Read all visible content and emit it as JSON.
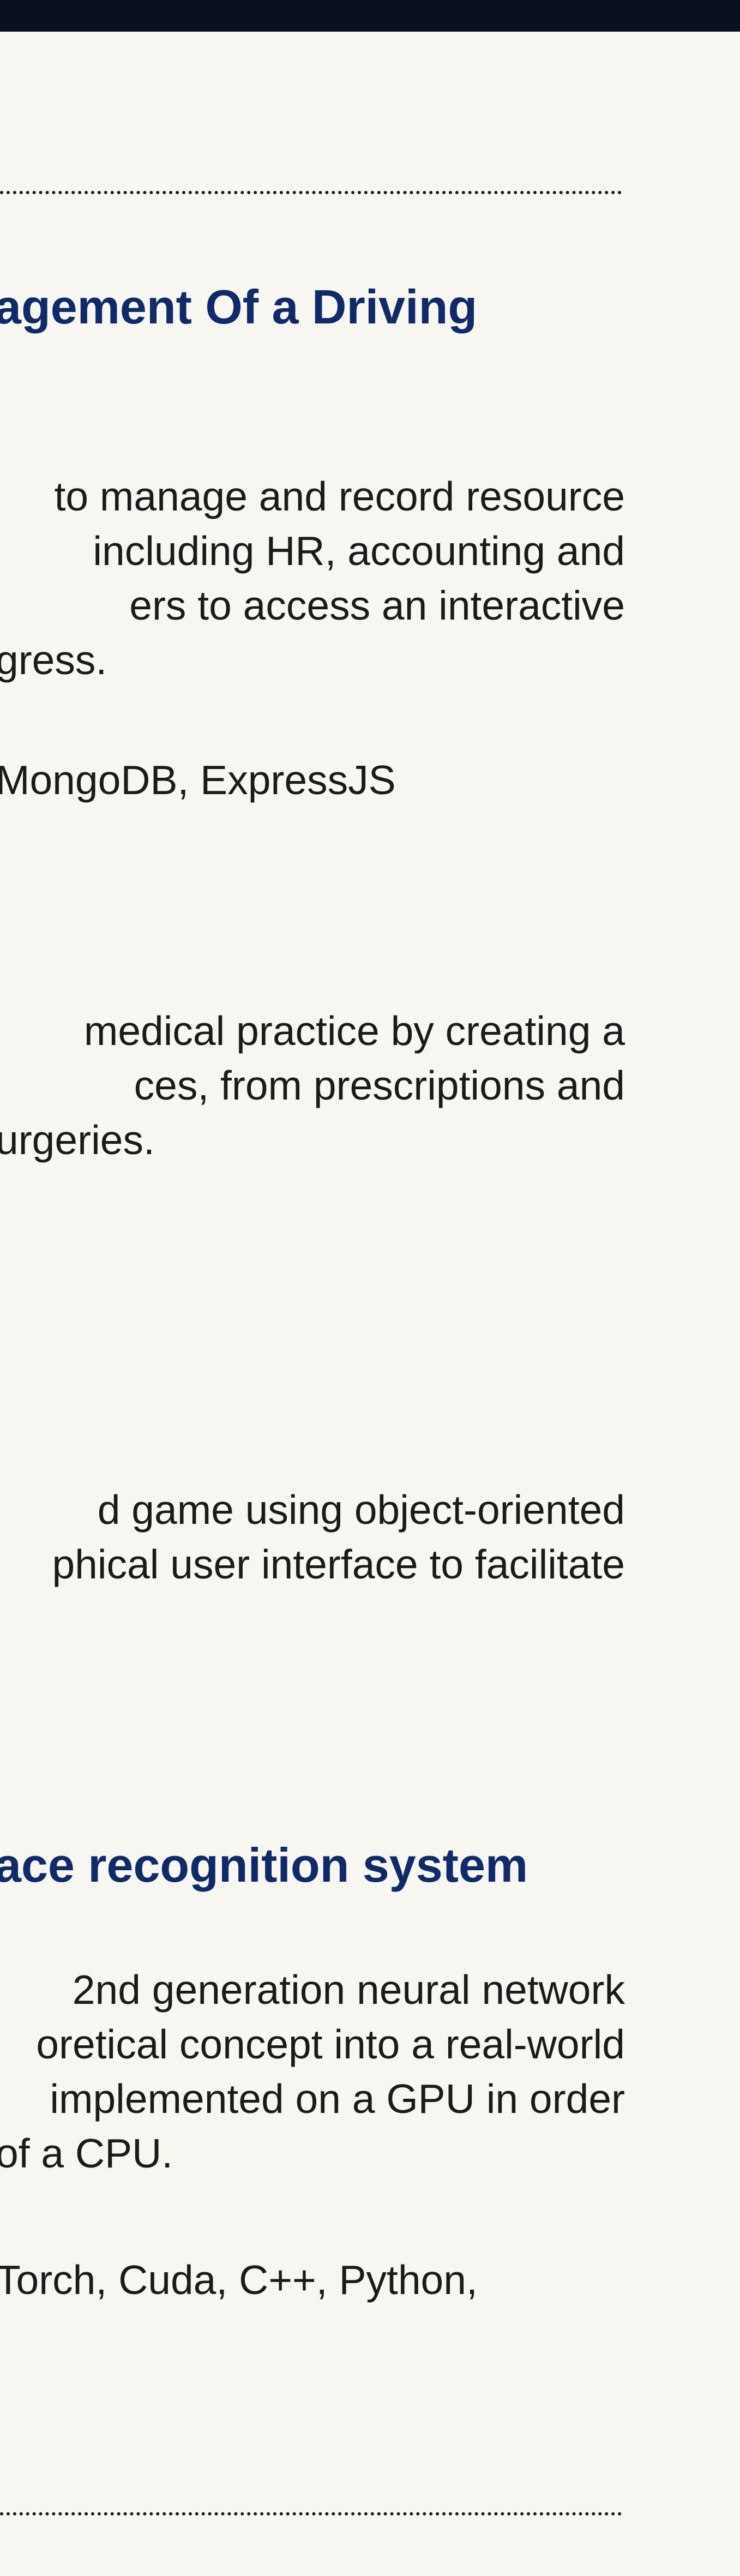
{
  "divider_top": "",
  "projects": [
    {
      "title": "agement Of a Driving",
      "description_lines": [
        "to manage and record resource",
        "including HR, accounting and",
        "ers  to  access  an  interactive",
        "gress."
      ],
      "tech": "MongoDB, ExpressJS"
    },
    {
      "title": "",
      "description_lines": [
        "medical  practice  by  creating  a",
        "ces,   from   prescriptions   and",
        "urgeries."
      ],
      "tech": ""
    },
    {
      "title": "",
      "description_lines": [
        "d   game   using   object-oriented",
        "phical user interface to facilitate"
      ],
      "tech": ""
    },
    {
      "title": "ace recognition system",
      "description_lines": [
        "2nd generation neural network",
        "oretical concept into a real-world",
        "implemented on a GPU in order",
        "of a CPU."
      ],
      "tech": "Torch, Cuda, C++, Python,"
    }
  ]
}
